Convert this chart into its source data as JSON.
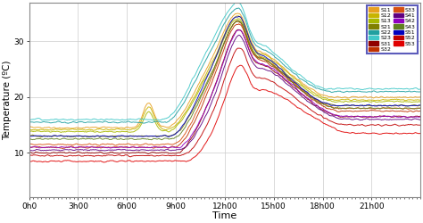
{
  "title": "",
  "xlabel": "Time",
  "ylabel": "Temperature (ºC)",
  "xlim": [
    0,
    288
  ],
  "ylim": [
    2,
    37
  ],
  "yticks": [
    10,
    20,
    30
  ],
  "xtick_labels": [
    "0h0",
    "3h00",
    "6h00",
    "9h00",
    "12h00",
    "15h00",
    "18h00",
    "21h00"
  ],
  "xtick_positions": [
    0,
    36,
    72,
    108,
    144,
    180,
    216,
    252
  ],
  "bg_color": "#ffffff",
  "grid_color": "#cccccc",
  "legend_border_color": "#3333aa",
  "series": [
    {
      "label": "S11",
      "color": "#e8a020"
    },
    {
      "label": "S12",
      "color": "#c8b400"
    },
    {
      "label": "S13",
      "color": "#a8b800"
    },
    {
      "label": "S21",
      "color": "#808000"
    },
    {
      "label": "S22",
      "color": "#20a0a0"
    },
    {
      "label": "S23",
      "color": "#40c8c8"
    },
    {
      "label": "S31",
      "color": "#900000"
    },
    {
      "label": "S32",
      "color": "#c03000"
    },
    {
      "label": "S33",
      "color": "#d85010"
    },
    {
      "label": "S41",
      "color": "#600080"
    },
    {
      "label": "S42",
      "color": "#9000c0"
    },
    {
      "label": "S43",
      "color": "#608020"
    },
    {
      "label": "S51",
      "color": "#0000c0"
    },
    {
      "label": "S52",
      "color": "#c00000"
    },
    {
      "label": "S53",
      "color": "#e00000"
    }
  ]
}
